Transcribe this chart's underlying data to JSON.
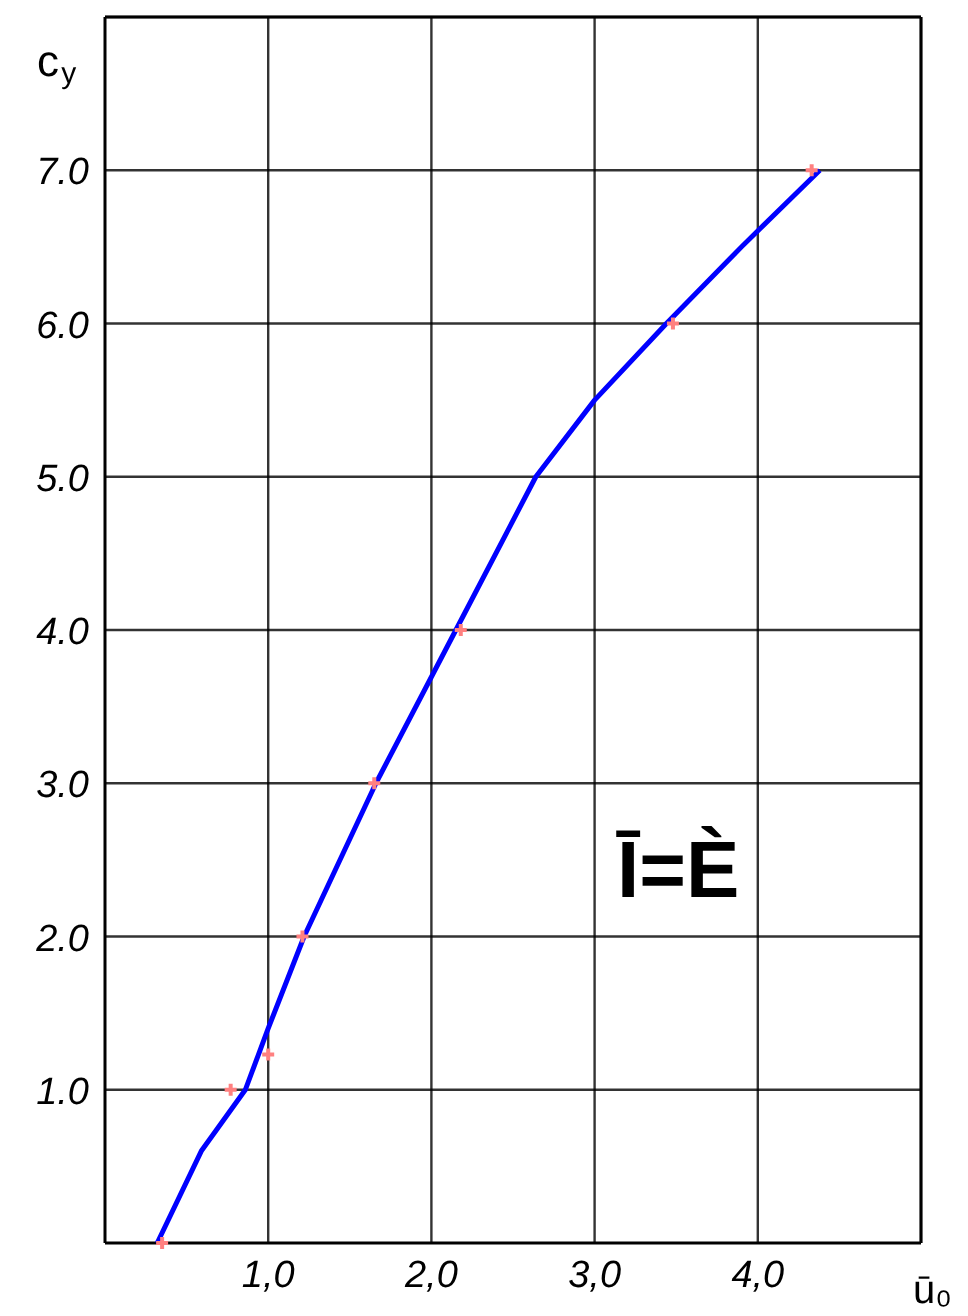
{
  "chart_data": {
    "type": "line",
    "xlabel": "ū₀",
    "ylabel": "c$_{y}$",
    "annotations": [
      "Ī=È"
    ],
    "xlim": [
      0,
      5
    ],
    "ylim": [
      0,
      8
    ],
    "xticks": [
      {
        "value": 1,
        "label": "1,0"
      },
      {
        "value": 2,
        "label": "2,0"
      },
      {
        "value": 3,
        "label": "3,0"
      },
      {
        "value": 4,
        "label": "4,0"
      },
      {
        "value": 5,
        "label": null
      }
    ],
    "yticks": [
      {
        "value": 1,
        "label": "1.0"
      },
      {
        "value": 2,
        "label": "2.0"
      },
      {
        "value": 3,
        "label": "3.0"
      },
      {
        "value": 4,
        "label": "4.0"
      },
      {
        "value": 5,
        "label": "5.0"
      },
      {
        "value": 6,
        "label": "6.0"
      },
      {
        "value": 7,
        "label": "7.0"
      },
      {
        "value": 8,
        "label": null
      }
    ],
    "grid": true,
    "series": [
      {
        "color": "#0000ff",
        "marker": "none",
        "line_style": "solid",
        "x": [
          0.32,
          0.59,
          0.86,
          1.0,
          1.22,
          1.66,
          2.15,
          2.64,
          3.0,
          3.44,
          3.9,
          4.38
        ],
        "values": [
          0,
          0.6,
          1.0,
          1.4,
          2.0,
          3.0,
          4.0,
          5.0,
          5.5,
          6.0,
          6.5,
          7.0
        ]
      },
      {
        "type": "scatter",
        "color": "#ff8080",
        "marker": "cross",
        "x": [
          0.35,
          0.77,
          1.0,
          1.21,
          1.65,
          2.18,
          3.48,
          4.33
        ],
        "values": [
          0,
          1.0,
          1.23,
          2.0,
          3.0,
          4.0,
          6.0,
          7.0
        ]
      }
    ]
  }
}
